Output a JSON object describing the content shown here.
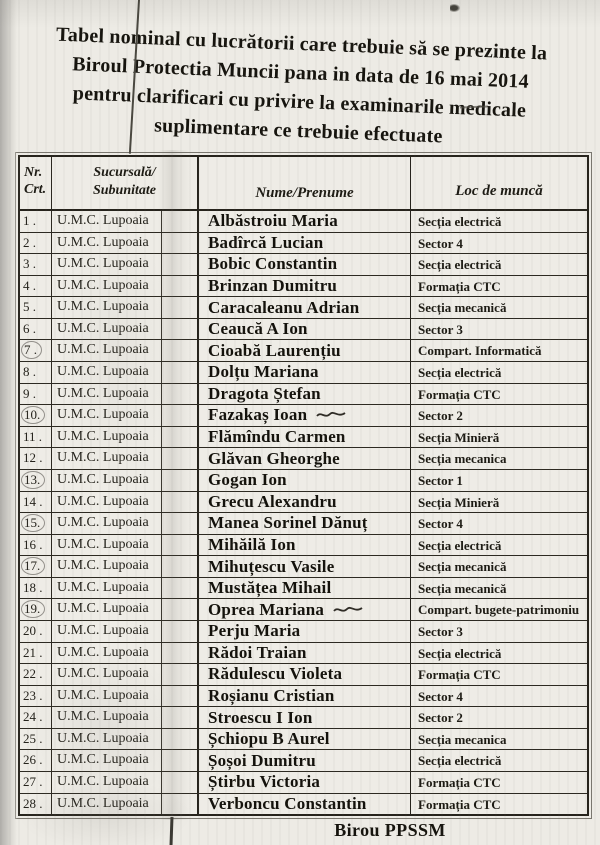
{
  "page": {
    "title_lines": [
      "Tabel nominal cu lucrătorii care trebuie să se prezinte la",
      "Biroul Protectia Muncii pana in data de 16 mai 2014",
      "pentru clarificari cu privire la examinarile medicale",
      "suplimentare ce trebuie efectuate"
    ],
    "footer": "Birou PPSSM"
  },
  "table": {
    "headers": {
      "col1_line1": "Nr.",
      "col1_line2": "Crt.",
      "col2_line1": "Sucursală/",
      "col2_line2": "Subunitate",
      "col3": "Nume/Prenume",
      "col4": "Loc de muncă"
    },
    "rows": [
      {
        "nr": "1 .",
        "unit": "U.M.C. Lupoaia",
        "name": "Albăstroiu Maria",
        "loc": "Secția electrică",
        "circled": false,
        "scribble": false
      },
      {
        "nr": "2 .",
        "unit": "U.M.C. Lupoaia",
        "name": "Badîrcă Lucian",
        "loc": "Sector 4",
        "circled": false,
        "scribble": false
      },
      {
        "nr": "3 .",
        "unit": "U.M.C. Lupoaia",
        "name": "Bobic Constantin",
        "loc": "Secția electrică",
        "circled": false,
        "scribble": false
      },
      {
        "nr": "4 .",
        "unit": "U.M.C. Lupoaia",
        "name": "Brinzan Dumitru",
        "loc": "Formația CTC",
        "circled": false,
        "scribble": false
      },
      {
        "nr": "5 .",
        "unit": "U.M.C. Lupoaia",
        "name": "Caracaleanu Adrian",
        "loc": "Secția mecanică",
        "circled": false,
        "scribble": false
      },
      {
        "nr": "6 .",
        "unit": "U.M.C. Lupoaia",
        "name": "Ceaucă A Ion",
        "loc": "Sector 3",
        "circled": false,
        "scribble": false
      },
      {
        "nr": "7 .",
        "unit": "U.M.C. Lupoaia",
        "name": "Cioabă Laurențiu",
        "loc": "Compart. Informatică",
        "circled": true,
        "scribble": false
      },
      {
        "nr": "8 .",
        "unit": "U.M.C. Lupoaia",
        "name": "Dolțu Mariana",
        "loc": "Secția electrică",
        "circled": false,
        "scribble": false
      },
      {
        "nr": "9 .",
        "unit": "U.M.C. Lupoaia",
        "name": "Dragota Ștefan",
        "loc": "Formația CTC",
        "circled": false,
        "scribble": false
      },
      {
        "nr": "10.",
        "unit": "U.M.C. Lupoaia",
        "name": "Fazakaș Ioan",
        "loc": "Sector 2",
        "circled": true,
        "scribble": true
      },
      {
        "nr": "11 .",
        "unit": "U.M.C. Lupoaia",
        "name": "Flămîndu Carmen",
        "loc": "Secția Minieră",
        "circled": false,
        "scribble": false
      },
      {
        "nr": "12 .",
        "unit": "U.M.C. Lupoaia",
        "name": "Glăvan Gheorghe",
        "loc": "Secția mecanica",
        "circled": false,
        "scribble": false
      },
      {
        "nr": "13.",
        "unit": "U.M.C. Lupoaia",
        "name": "Gogan Ion",
        "loc": "Sector 1",
        "circled": true,
        "scribble": false
      },
      {
        "nr": "14 .",
        "unit": "U.M.C. Lupoaia",
        "name": "Grecu Alexandru",
        "loc": "Secția Minieră",
        "circled": false,
        "scribble": false
      },
      {
        "nr": "15.",
        "unit": "U.M.C. Lupoaia",
        "name": "Manea Sorinel Dănuț",
        "loc": "Sector 4",
        "circled": true,
        "scribble": false
      },
      {
        "nr": "16 .",
        "unit": "U.M.C. Lupoaia",
        "name": "Mihăilă Ion",
        "loc": "Secția electrică",
        "circled": false,
        "scribble": false
      },
      {
        "nr": "17.",
        "unit": "U.M.C. Lupoaia",
        "name": "Mihuțescu Vasile",
        "loc": "Secția mecanică",
        "circled": true,
        "scribble": false
      },
      {
        "nr": "18 .",
        "unit": "U.M.C. Lupoaia",
        "name": "Mustățea Mihail",
        "loc": "Secția mecanică",
        "circled": false,
        "scribble": false
      },
      {
        "nr": "19.",
        "unit": "U.M.C. Lupoaia",
        "name": "Oprea Mariana",
        "loc": "Compart. bugete-patrimoniu",
        "circled": true,
        "scribble": true
      },
      {
        "nr": "20 .",
        "unit": "U.M.C. Lupoaia",
        "name": "Perju Maria",
        "loc": "Sector 3",
        "circled": false,
        "scribble": false
      },
      {
        "nr": "21 .",
        "unit": "U.M.C. Lupoaia",
        "name": "Rădoi Traian",
        "loc": "Secția electrică",
        "circled": false,
        "scribble": false
      },
      {
        "nr": "22 .",
        "unit": "U.M.C. Lupoaia",
        "name": "Rădulescu Violeta",
        "loc": "Formația CTC",
        "circled": false,
        "scribble": false
      },
      {
        "nr": "23 .",
        "unit": "U.M.C. Lupoaia",
        "name": "Roșianu Cristian",
        "loc": "Sector 4",
        "circled": false,
        "scribble": false
      },
      {
        "nr": "24 .",
        "unit": "U.M.C. Lupoaia",
        "name": "Stroescu I Ion",
        "loc": "Sector 2",
        "circled": false,
        "scribble": false
      },
      {
        "nr": "25 .",
        "unit": "U.M.C. Lupoaia",
        "name": "Șchiopu B Aurel",
        "loc": "Secția mecanica",
        "circled": false,
        "scribble": false
      },
      {
        "nr": "26 .",
        "unit": "U.M.C. Lupoaia",
        "name": "Șoșoi Dumitru",
        "loc": "Secția electrică",
        "circled": false,
        "scribble": false
      },
      {
        "nr": "27 .",
        "unit": "U.M.C. Lupoaia",
        "name": "Știrbu Victoria",
        "loc": "Formația CTC",
        "circled": false,
        "scribble": false
      },
      {
        "nr": "28 .",
        "unit": "U.M.C. Lupoaia",
        "name": "Verboncu Constantin",
        "loc": "Formația CTC",
        "circled": false,
        "scribble": false
      }
    ]
  }
}
